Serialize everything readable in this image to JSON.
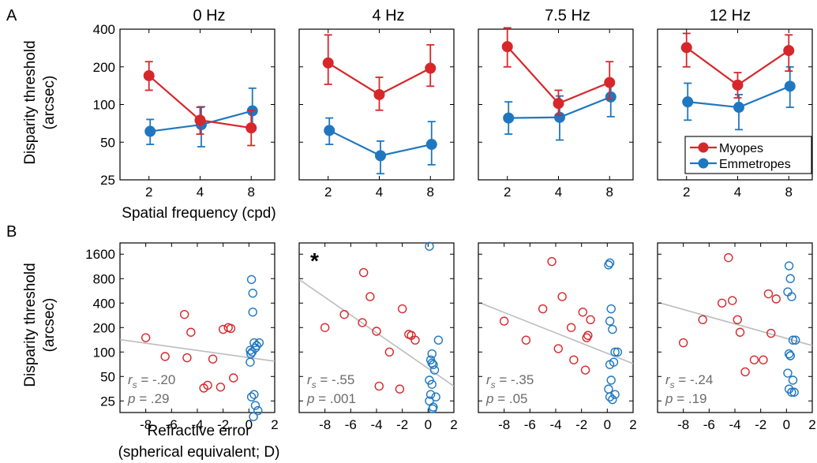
{
  "colors": {
    "myopes": "#d7272b",
    "emmetropes": "#1f77c0",
    "regression": "#bdbdbd",
    "stats_text": "#6b6b6b"
  },
  "figure": {
    "panel_a_letter": "A",
    "panel_b_letter": "B",
    "titles": [
      "0 Hz",
      "4 Hz",
      "7.5 Hz",
      "12 Hz"
    ],
    "a_ylabel_line1": "Disparity threshold",
    "a_ylabel_line2": "(arcsec)",
    "a_xlabel": "Spatial frequency (cpd)",
    "b_ylabel_line1": "Disparity threshold",
    "b_ylabel_line2": "(arcsec)",
    "b_xlabel_line1": "Refractive error",
    "b_xlabel_line2": "(spherical equivalent; D)",
    "legend_myopes": "Myopes",
    "legend_emmetropes": "Emmetropes",
    "star": "*",
    "rs_label": "r",
    "rs_sub": "s",
    "p_label": "p"
  },
  "chart_data": [
    {
      "type": "line",
      "panel": "A",
      "title": "0 Hz",
      "xlabel": "Spatial frequency (cpd)",
      "ylabel": "Disparity threshold (arcsec)",
      "yscale": "log",
      "ylim": [
        25,
        400
      ],
      "yticks": [
        25,
        50,
        100,
        200,
        400
      ],
      "xticks": [
        2,
        4,
        8
      ],
      "series": [
        {
          "name": "Myopes",
          "x": [
            2,
            4,
            8
          ],
          "y": [
            170,
            75,
            65
          ],
          "err_low": [
            130,
            58,
            47
          ],
          "err_high": [
            220,
            95,
            90
          ]
        },
        {
          "name": "Emmetropes",
          "x": [
            2,
            4,
            8
          ],
          "y": [
            61,
            69,
            89
          ],
          "err_low": [
            48,
            46,
            63
          ],
          "err_high": [
            76,
            96,
            135
          ]
        }
      ]
    },
    {
      "type": "line",
      "panel": "A",
      "title": "4 Hz",
      "yscale": "log",
      "ylim": [
        25,
        400
      ],
      "xticks": [
        2,
        4,
        8
      ],
      "series": [
        {
          "name": "Myopes",
          "x": [
            2,
            4,
            8
          ],
          "y": [
            215,
            120,
            195
          ],
          "err_low": [
            145,
            90,
            140
          ],
          "err_high": [
            360,
            165,
            300
          ]
        },
        {
          "name": "Emmetropes",
          "x": [
            2,
            4,
            8
          ],
          "y": [
            62,
            39,
            48
          ],
          "err_low": [
            48,
            28,
            33
          ],
          "err_high": [
            78,
            51,
            73
          ]
        }
      ]
    },
    {
      "type": "line",
      "panel": "A",
      "title": "7.5 Hz",
      "yscale": "log",
      "ylim": [
        25,
        400
      ],
      "xticks": [
        2,
        4,
        8
      ],
      "series": [
        {
          "name": "Myopes",
          "x": [
            2,
            4,
            8
          ],
          "y": [
            290,
            102,
            150
          ],
          "err_low": [
            200,
            82,
            110
          ],
          "err_high": [
            410,
            130,
            220
          ]
        },
        {
          "name": "Emmetropes",
          "x": [
            2,
            4,
            8
          ],
          "y": [
            78,
            79,
            115
          ],
          "err_low": [
            58,
            52,
            80
          ],
          "err_high": [
            105,
            117,
            150
          ]
        }
      ]
    },
    {
      "type": "line",
      "panel": "A",
      "title": "12 Hz",
      "yscale": "log",
      "ylim": [
        25,
        400
      ],
      "xticks": [
        2,
        4,
        8
      ],
      "legend": "bottom-right",
      "series": [
        {
          "name": "Myopes",
          "x": [
            2,
            4,
            8
          ],
          "y": [
            285,
            143,
            270
          ],
          "err_low": [
            200,
            113,
            185
          ],
          "err_high": [
            370,
            180,
            360
          ]
        },
        {
          "name": "Emmetropes",
          "x": [
            2,
            4,
            8
          ],
          "y": [
            105,
            95,
            140
          ],
          "err_low": [
            75,
            63,
            95
          ],
          "err_high": [
            148,
            120,
            200
          ]
        }
      ]
    },
    {
      "type": "scatter",
      "panel": "B",
      "xlabel": "Refractive error (spherical equivalent; D)",
      "ylabel": "Disparity threshold (arcsec)",
      "yscale": "log",
      "ylim": [
        18,
        2200
      ],
      "yticks": [
        25,
        50,
        100,
        200,
        400,
        800,
        1600
      ],
      "xlim": [
        -10,
        2
      ],
      "xticks": [
        -8,
        -6,
        -4,
        -2,
        0,
        2
      ],
      "rs": "-.20",
      "p": ".29",
      "fit": {
        "x": [
          -10,
          2
        ],
        "y": [
          142,
          77
        ]
      },
      "myopes": {
        "x": [
          -8,
          -6.5,
          -5,
          -4.8,
          -4.5,
          -3.5,
          -3.2,
          -2.8,
          -2.2,
          -2,
          -1.6,
          -1.4,
          -1.2
        ],
        "y": [
          150,
          88,
          290,
          85,
          175,
          36,
          39,
          82,
          37,
          190,
          200,
          195,
          48
        ]
      },
      "emmetropes": {
        "x": [
          0.2,
          0.3,
          0.3,
          0.4,
          0.5,
          0.1,
          0.15,
          0.25,
          0.6,
          0.8,
          0.4,
          0.2,
          0.5,
          0.35,
          0.7,
          0.1
        ],
        "y": [
          780,
          530,
          310,
          130,
          112,
          105,
          95,
          100,
          120,
          130,
          30,
          28,
          22,
          16,
          19,
          75
        ]
      }
    },
    {
      "type": "scatter",
      "panel": "B",
      "yscale": "log",
      "ylim": [
        18,
        2200
      ],
      "xlim": [
        -10,
        2
      ],
      "xticks": [
        -8,
        -6,
        -4,
        -2,
        0,
        2
      ],
      "rs": "-.55",
      "p": ".001",
      "significant": true,
      "fit": {
        "x": [
          -10,
          2
        ],
        "y": [
          780,
          38
        ]
      },
      "myopes": {
        "x": [
          -8,
          -6.5,
          -5,
          -5.1,
          -4.5,
          -4,
          -3.8,
          -3,
          -2.2,
          -2,
          -1.5,
          -1.3,
          -1
        ],
        "y": [
          200,
          290,
          950,
          230,
          480,
          180,
          38,
          100,
          35,
          340,
          165,
          160,
          140
        ]
      },
      "emmetropes": {
        "x": [
          0.1,
          0.3,
          0.2,
          0.4,
          0.5,
          0.8,
          0.3,
          0.1,
          0.35,
          0.4,
          0.2,
          0.6,
          0.1,
          0.3
        ],
        "y": [
          2000,
          95,
          80,
          70,
          60,
          140,
          40,
          25,
          20,
          21,
          30,
          28,
          45,
          73
        ]
      }
    },
    {
      "type": "scatter",
      "panel": "B",
      "yscale": "log",
      "ylim": [
        18,
        2200
      ],
      "xlim": [
        -10,
        2
      ],
      "xticks": [
        -8,
        -6,
        -4,
        -2,
        0,
        2
      ],
      "rs": "-.35",
      "p": ".05",
      "fit": {
        "x": [
          -10,
          2
        ],
        "y": [
          410,
          72
        ]
      },
      "myopes": {
        "x": [
          -8,
          -6.3,
          -5,
          -4.3,
          -3.8,
          -3.5,
          -2.8,
          -2.6,
          -1.9,
          -1.7,
          -1.6,
          -1.5,
          -1.3
        ],
        "y": [
          240,
          140,
          340,
          1300,
          110,
          480,
          200,
          80,
          310,
          60,
          150,
          160,
          250
        ]
      },
      "emmetropes": {
        "x": [
          0.1,
          0.2,
          0.3,
          0.2,
          0.4,
          0.6,
          0.8,
          0.5,
          0.2,
          0.3,
          0.1,
          0.6,
          0.2,
          0.4
        ],
        "y": [
          1180,
          1250,
          340,
          240,
          190,
          100,
          100,
          75,
          70,
          45,
          35,
          30,
          28,
          26
        ]
      }
    },
    {
      "type": "scatter",
      "panel": "B",
      "yscale": "log",
      "ylim": [
        18,
        2200
      ],
      "xlim": [
        -10,
        2
      ],
      "xticks": [
        -8,
        -6,
        -4,
        -2,
        0,
        2
      ],
      "rs": "-.24",
      "p": ".19",
      "fit": {
        "x": [
          -10,
          2
        ],
        "y": [
          410,
          120
        ]
      },
      "myopes": {
        "x": [
          -8,
          -6.5,
          -5,
          -4.5,
          -4.2,
          -3.8,
          -3.6,
          -3.2,
          -2.5,
          -1.8,
          -1.4,
          -1.2,
          -0.8
        ],
        "y": [
          130,
          250,
          400,
          1450,
          430,
          250,
          175,
          57,
          80,
          80,
          520,
          170,
          450
        ]
      },
      "emmetropes": {
        "x": [
          0.2,
          0.3,
          0.1,
          0.4,
          0.5,
          0.7,
          0.2,
          0.3,
          0.1,
          0.5,
          0.2,
          0.4,
          0.6,
          0.3
        ],
        "y": [
          1150,
          800,
          550,
          480,
          140,
          140,
          95,
          90,
          55,
          45,
          35,
          32,
          32,
          90
        ]
      }
    }
  ]
}
